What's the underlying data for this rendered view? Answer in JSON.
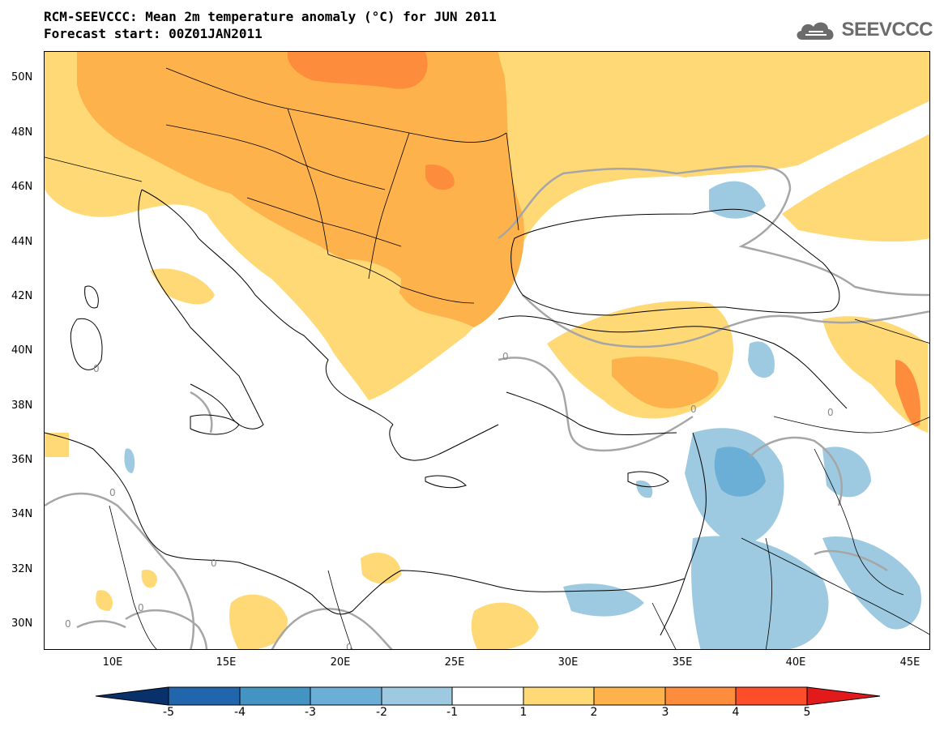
{
  "title": {
    "line1": "RCM-SEEVCCC: Mean 2m temperature anomaly (°C) for JUN 2011",
    "line2": "Forecast start: 00Z01JAN2011"
  },
  "logo": {
    "text": "SEEVCCC",
    "icon": "cloud-icon"
  },
  "map": {
    "lat_labels": [
      "50N",
      "48N",
      "46N",
      "44N",
      "42N",
      "40N",
      "38N",
      "36N",
      "34N",
      "32N",
      "30N"
    ],
    "lon_labels": [
      "10E",
      "15E",
      "20E",
      "25E",
      "30E",
      "35E",
      "40E",
      "45E"
    ],
    "contour_label": "0"
  },
  "colorbar": {
    "labels": [
      "-5",
      "-4",
      "-3",
      "-2",
      "-1",
      "1",
      "2",
      "3",
      "4",
      "5"
    ],
    "colors": [
      "#08306b",
      "#2166ac",
      "#4393c3",
      "#6baed6",
      "#9ecae1",
      "#ffffff",
      "#fed976",
      "#feb24c",
      "#fd8d3c",
      "#fc4e2a",
      "#e31a1c"
    ]
  }
}
